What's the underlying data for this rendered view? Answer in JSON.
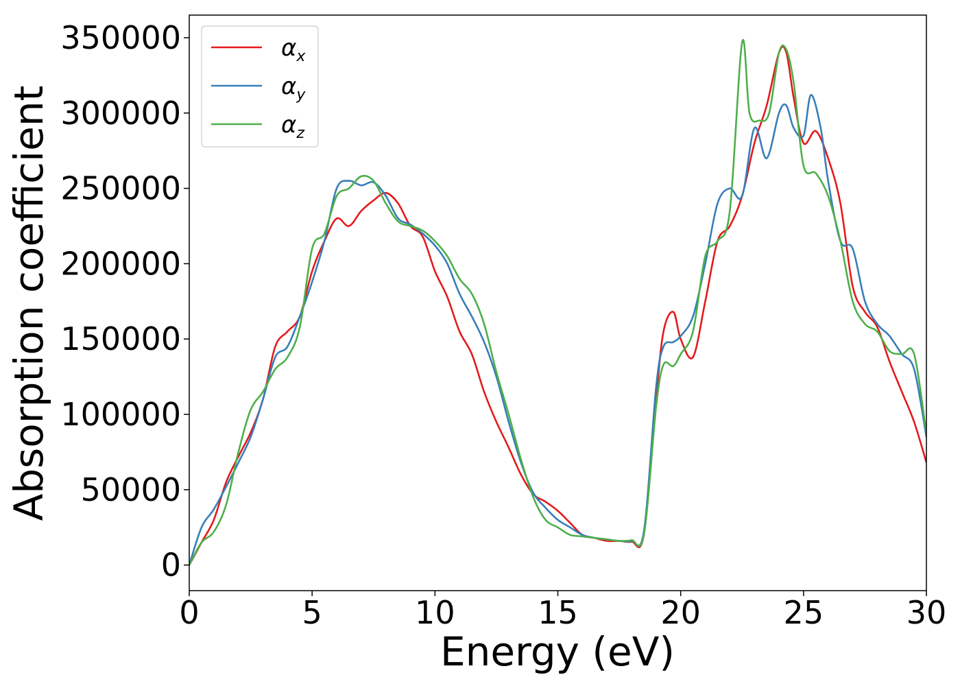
{
  "chart_data": {
    "type": "line",
    "xlabel": "Energy (eV)",
    "ylabel": "Absorption coefficient",
    "xlim": [
      0,
      30
    ],
    "ylim": [
      -17000,
      365000
    ],
    "xticks": [
      "0",
      "5",
      "10",
      "15",
      "20",
      "25",
      "30"
    ],
    "xtick_values": [
      0,
      5,
      10,
      15,
      20,
      25,
      30
    ],
    "yticks": [
      "0",
      "50000",
      "100000",
      "150000",
      "200000",
      "250000",
      "300000",
      "350000"
    ],
    "ytick_values": [
      0,
      50000,
      100000,
      150000,
      200000,
      250000,
      300000,
      350000
    ],
    "grid": false,
    "legend_position": "top-left",
    "series": [
      {
        "name": "αx",
        "name_base": "α",
        "name_sub": "x",
        "color": "#e41a1c",
        "x": [
          0,
          0.5,
          1.0,
          1.5,
          2.0,
          2.5,
          3.0,
          3.5,
          4.0,
          4.5,
          5.0,
          5.5,
          6.0,
          6.5,
          7.0,
          7.5,
          8.0,
          8.5,
          9.0,
          9.5,
          10.0,
          10.5,
          11.0,
          11.5,
          12.0,
          12.5,
          13.0,
          13.5,
          14.0,
          14.5,
          15.0,
          15.5,
          16.0,
          16.5,
          17.0,
          17.5,
          18.0,
          18.5,
          19.0,
          19.3,
          19.7,
          20.0,
          20.5,
          21.0,
          21.5,
          22.0,
          22.5,
          23.0,
          23.5,
          24.0,
          24.3,
          24.6,
          25.0,
          25.5,
          26.0,
          26.5,
          27.0,
          27.5,
          28.0,
          28.5,
          29.0,
          29.5,
          30.0
        ],
        "y": [
          0,
          15000,
          30000,
          55000,
          72000,
          88000,
          110000,
          145000,
          155000,
          165000,
          195000,
          215000,
          230000,
          225000,
          235000,
          242000,
          247000,
          240000,
          225000,
          218000,
          195000,
          178000,
          155000,
          140000,
          115000,
          95000,
          78000,
          60000,
          47000,
          42000,
          36000,
          28000,
          20000,
          18000,
          16000,
          16000,
          15500,
          20000,
          110000,
          155000,
          168000,
          150000,
          138000,
          175000,
          215000,
          225000,
          245000,
          280000,
          305000,
          340000,
          340000,
          310000,
          280000,
          288000,
          270000,
          240000,
          185000,
          168000,
          158000,
          135000,
          115000,
          95000,
          68000
        ]
      },
      {
        "name": "αy",
        "name_base": "α",
        "name_sub": "y",
        "color": "#377eb8",
        "x": [
          0,
          0.5,
          1.0,
          1.5,
          2.0,
          2.5,
          3.0,
          3.5,
          4.0,
          4.5,
          5.0,
          5.5,
          6.0,
          6.5,
          7.0,
          7.5,
          8.0,
          8.5,
          9.0,
          9.5,
          10.0,
          10.5,
          11.0,
          11.5,
          12.0,
          12.5,
          13.0,
          13.5,
          14.0,
          14.5,
          15.0,
          15.5,
          16.0,
          16.5,
          17.0,
          17.5,
          18.0,
          18.5,
          19.0,
          19.3,
          19.7,
          20.0,
          20.5,
          21.0,
          21.5,
          22.0,
          22.5,
          23.0,
          23.5,
          24.0,
          24.3,
          24.6,
          25.0,
          25.3,
          25.7,
          26.0,
          26.5,
          27.0,
          27.5,
          28.0,
          28.5,
          29.0,
          29.5,
          30.0
        ],
        "y": [
          0,
          25000,
          37000,
          52000,
          68000,
          85000,
          110000,
          138000,
          145000,
          165000,
          188000,
          215000,
          250000,
          255000,
          252000,
          254000,
          245000,
          230000,
          226000,
          220000,
          212000,
          200000,
          180000,
          165000,
          148000,
          125000,
          95000,
          68000,
          48000,
          38000,
          30000,
          25000,
          20000,
          18000,
          17000,
          16000,
          16000,
          22000,
          118000,
          145000,
          148000,
          152000,
          165000,
          200000,
          240000,
          250000,
          245000,
          290000,
          270000,
          300000,
          305000,
          290000,
          285000,
          312000,
          290000,
          255000,
          215000,
          210000,
          175000,
          160000,
          152000,
          140000,
          130000,
          85000
        ]
      },
      {
        "name": "αz",
        "name_base": "α",
        "name_sub": "z",
        "color": "#4daf4a",
        "x": [
          0,
          0.5,
          1.0,
          1.5,
          2.0,
          2.5,
          3.0,
          3.5,
          4.0,
          4.5,
          5.0,
          5.5,
          6.0,
          6.5,
          7.0,
          7.5,
          8.0,
          8.5,
          9.0,
          9.5,
          10.0,
          10.5,
          11.0,
          11.5,
          12.0,
          12.5,
          13.0,
          13.5,
          14.0,
          14.5,
          15.0,
          15.5,
          16.0,
          16.5,
          17.0,
          17.5,
          18.0,
          18.5,
          19.0,
          19.3,
          19.7,
          20.0,
          20.5,
          21.0,
          21.5,
          22.0,
          22.5,
          22.8,
          23.2,
          23.6,
          24.0,
          24.3,
          24.6,
          25.0,
          25.5,
          26.0,
          26.5,
          27.0,
          27.5,
          28.0,
          28.5,
          29.0,
          29.5,
          30.0
        ],
        "y": [
          0,
          15000,
          22000,
          40000,
          75000,
          103000,
          115000,
          130000,
          138000,
          158000,
          210000,
          220000,
          245000,
          250000,
          258000,
          255000,
          240000,
          228000,
          225000,
          222000,
          215000,
          205000,
          190000,
          180000,
          160000,
          128000,
          100000,
          70000,
          45000,
          30000,
          25000,
          20000,
          19000,
          18000,
          17000,
          16000,
          16500,
          20000,
          105000,
          133000,
          132000,
          140000,
          155000,
          205000,
          215000,
          235000,
          347000,
          300000,
          295000,
          300000,
          340000,
          342000,
          320000,
          265000,
          260000,
          245000,
          215000,
          175000,
          160000,
          155000,
          142000,
          140000,
          140000,
          87000
        ]
      }
    ]
  }
}
